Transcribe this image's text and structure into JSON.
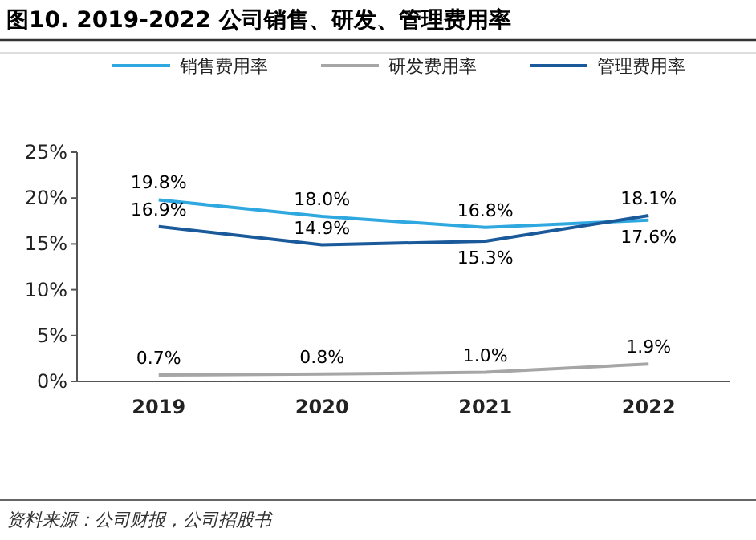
{
  "chart_data": {
    "type": "line",
    "title": "图10. 2019-2022 公司销售、研发、管理费用率",
    "categories": [
      "2019",
      "2020",
      "2021",
      "2022"
    ],
    "series": [
      {
        "name": "销售费用率",
        "color": "#2fa8e0",
        "values": [
          19.8,
          18.0,
          16.8,
          17.6
        ],
        "value_labels": [
          "19.8%",
          "18.0%",
          "16.8%",
          "17.6%"
        ]
      },
      {
        "name": "研发费用率",
        "color": "#a6a6a6",
        "values": [
          0.7,
          0.8,
          1.0,
          1.9
        ],
        "value_labels": [
          "0.7%",
          "0.8%",
          "1.0%",
          "1.9%"
        ]
      },
      {
        "name": "管理费用率",
        "color": "#1a5a9a",
        "values": [
          16.9,
          14.9,
          15.3,
          18.1
        ],
        "value_labels": [
          "16.9%",
          "14.9%",
          "15.3%",
          "18.1%"
        ]
      }
    ],
    "ylim": [
      0,
      25
    ],
    "yticks": [
      {
        "value": 0,
        "label": "0%"
      },
      {
        "value": 5,
        "label": "5%"
      },
      {
        "value": 10,
        "label": "10%"
      },
      {
        "value": 15,
        "label": "15%"
      },
      {
        "value": 20,
        "label": "20%"
      },
      {
        "value": 25,
        "label": "25%"
      }
    ],
    "legend": "top",
    "grid": false,
    "marker": "none",
    "annotations": [
      "资料来源：公司财报，公司招股书"
    ]
  }
}
